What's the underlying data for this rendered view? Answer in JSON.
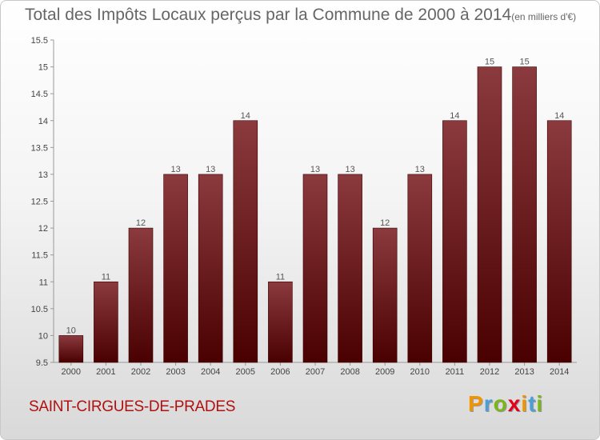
{
  "header": {
    "title": "Total des Impôts Locaux perçus par la Commune de 2000 à 2014",
    "unit": "(en milliers d'€)"
  },
  "footer": {
    "commune": "SAINT-CIRGUES-DE-PRADES",
    "logo_letters": [
      "P",
      "r",
      "o",
      "x",
      "i",
      "t",
      "i"
    ],
    "logo_colors": [
      "#f29400",
      "#4c9ed9",
      "#7ab51d",
      "#e2001a",
      "#f29400",
      "#4c9ed9",
      "#7ab51d"
    ]
  },
  "colors": {
    "bar_top": "#8b3a3e",
    "bar_bottom": "#4a0000",
    "bar_stroke": "#3a0000"
  },
  "chart_data": {
    "type": "bar",
    "title": "Total des Impôts Locaux perçus par la Commune de 2000 à 2014",
    "xlabel": "",
    "ylabel": "",
    "categories": [
      "2000",
      "2001",
      "2002",
      "2003",
      "2004",
      "2005",
      "2006",
      "2007",
      "2008",
      "2009",
      "2010",
      "2011",
      "2012",
      "2013",
      "2014"
    ],
    "values": [
      10,
      11,
      12,
      13,
      13,
      14,
      11,
      13,
      13,
      12,
      13,
      14,
      15,
      15,
      14
    ],
    "ylim": [
      9.5,
      15.5
    ],
    "yticks": [
      "9.5",
      "10",
      "10.5",
      "11",
      "11.5",
      "12",
      "12.5",
      "13",
      "13.5",
      "14",
      "14.5",
      "15",
      "15.5"
    ],
    "grid": false
  }
}
